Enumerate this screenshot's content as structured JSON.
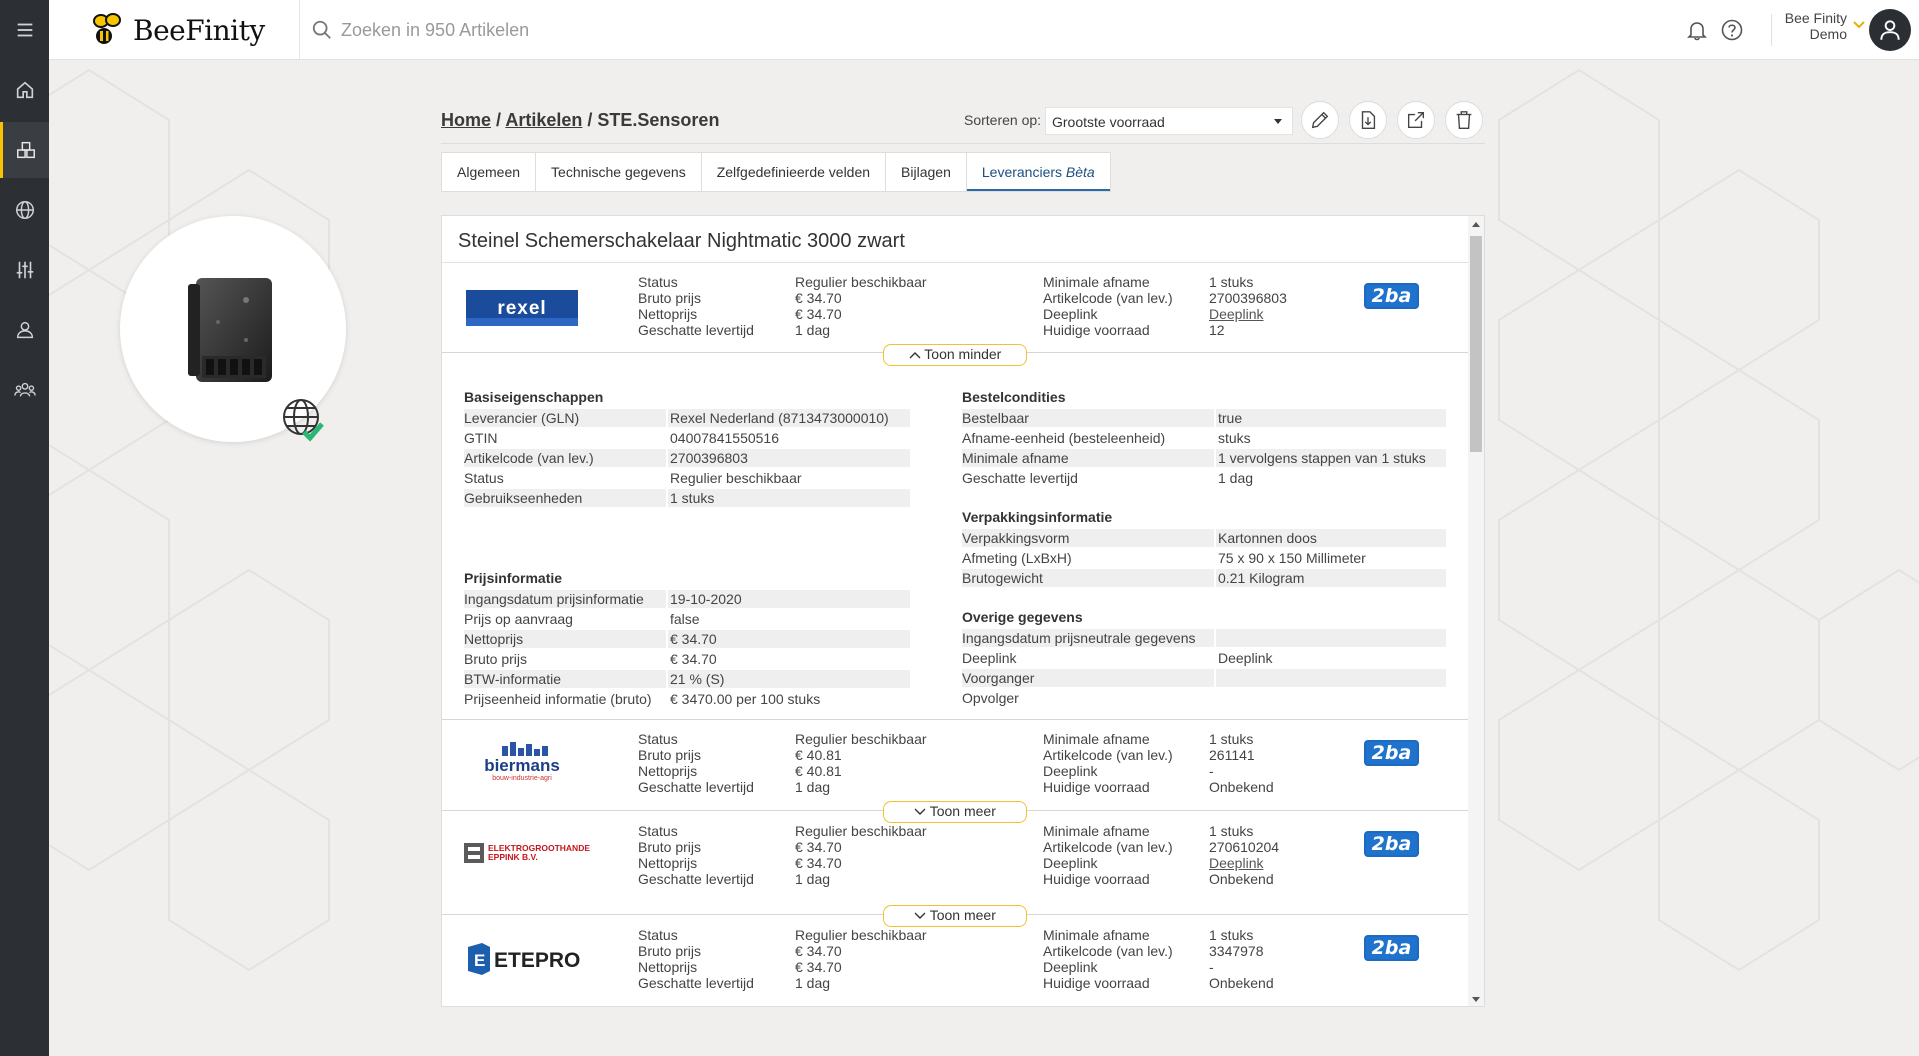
{
  "app": {
    "name": "BeeFinity"
  },
  "search": {
    "placeholder": "Zoeken in 950 Artikelen"
  },
  "user": {
    "line1": "Bee Finity",
    "line2": "Demo"
  },
  "sidebar": {
    "items": [
      "menu",
      "home",
      "articles",
      "globe",
      "filters",
      "user",
      "users"
    ]
  },
  "breadcrumb": {
    "home": "Home",
    "sep1": " / ",
    "articles": "Artikelen",
    "sep2": " / ",
    "current": "STE.Sensoren"
  },
  "sort": {
    "label": "Sorteren op:",
    "value": "Grootste voorraad"
  },
  "tabs": [
    {
      "label": "Algemeen"
    },
    {
      "label": "Technische gegevens"
    },
    {
      "label": "Zelfgedefinieerde velden"
    },
    {
      "label": "Bijlagen"
    },
    {
      "label": "Leveranciers",
      "suffix": "Bèta"
    }
  ],
  "panel": {
    "title": "Steinel Schemerschakelaar Nightmatic 3000 zwart"
  },
  "labels": {
    "status": "Status",
    "bruto": "Bruto prijs",
    "netto": "Nettoprijs",
    "levertijd": "Geschatte levertijd",
    "min_afname": "Minimale afname",
    "artcode": "Artikelcode (van lev.)",
    "deeplink": "Deeplink",
    "voorraad": "Huidige voorraad",
    "badge": "2ba",
    "less": "Toon minder",
    "more": "Toon meer"
  },
  "suppliers": [
    {
      "logo": "rexel",
      "logo_text": "rexel",
      "status": "Regulier beschikbaar",
      "bruto": "€ 34.70",
      "netto": "€ 34.70",
      "levertijd": "1 dag",
      "min_afname": "1 stuks",
      "artcode": "2700396803",
      "deeplink": "Deeplink",
      "voorraad": "12"
    },
    {
      "logo": "biermans",
      "logo_text": "biermans",
      "logo_sub": "bouw-industrie-agri",
      "status": "Regulier beschikbaar",
      "bruto": "€ 40.81",
      "netto": "€ 40.81",
      "levertijd": "1 dag",
      "min_afname": "1 stuks",
      "artcode": "261141",
      "deeplink": "-",
      "voorraad": "Onbekend"
    },
    {
      "logo": "eppink",
      "logo_text": "ELEKTROGROOTHANDEL",
      "logo_sub": "EPPINK B.V.",
      "status": "Regulier beschikbaar",
      "bruto": "€ 34.70",
      "netto": "€ 34.70",
      "levertijd": "1 dag",
      "min_afname": "1 stuks",
      "artcode": "270610204",
      "deeplink": "Deeplink",
      "voorraad": "Onbekend"
    },
    {
      "logo": "etepro",
      "logo_text": "ETEPRO",
      "status": "Regulier beschikbaar",
      "bruto": "€ 34.70",
      "netto": "€ 34.70",
      "levertijd": "1 dag",
      "min_afname": "1 stuks",
      "artcode": "3347978",
      "deeplink": "-",
      "voorraad": "Onbekend"
    }
  ],
  "details": {
    "basis": {
      "title": "Basiseigenschappen",
      "rows": [
        [
          "Leverancier (GLN)",
          "Rexel Nederland (8713473000010)"
        ],
        [
          "GTIN",
          "04007841550516"
        ],
        [
          "Artikelcode (van lev.)",
          "2700396803"
        ],
        [
          "Status",
          "Regulier beschikbaar"
        ],
        [
          "Gebruikseenheden",
          "1 stuks"
        ]
      ]
    },
    "prijs": {
      "title": "Prijsinformatie",
      "rows": [
        [
          "Ingangsdatum prijsinformatie",
          "19-10-2020"
        ],
        [
          "Prijs op aanvraag",
          "false"
        ],
        [
          "Nettoprijs",
          "€ 34.70"
        ],
        [
          "Bruto prijs",
          "€ 34.70"
        ],
        [
          "BTW-informatie",
          "21 % (S)"
        ],
        [
          "Prijseenheid informatie (bruto)",
          "€ 3470.00 per 100 stuks"
        ]
      ]
    },
    "bestel": {
      "title": "Bestelcondities",
      "rows": [
        [
          "Bestelbaar",
          "true"
        ],
        [
          "Afname-eenheid (besteleenheid)",
          "stuks"
        ],
        [
          "Minimale afname",
          "1 vervolgens stappen van 1 stuks"
        ],
        [
          "Geschatte levertijd",
          "1 dag"
        ]
      ]
    },
    "verpak": {
      "title": "Verpakkingsinformatie",
      "rows": [
        [
          "Verpakkingsvorm",
          "Kartonnen doos"
        ],
        [
          "Afmeting (LxBxH)",
          "75 x 90 x 150 Millimeter"
        ],
        [
          "Brutogewicht",
          "0.21 Kilogram"
        ]
      ]
    },
    "overig": {
      "title": "Overige gegevens",
      "rows": [
        [
          "Ingangsdatum prijsneutrale gegevens",
          ""
        ],
        [
          "Deeplink",
          "Deeplink"
        ],
        [
          "Voorganger",
          ""
        ],
        [
          "Opvolger",
          ""
        ]
      ]
    }
  }
}
